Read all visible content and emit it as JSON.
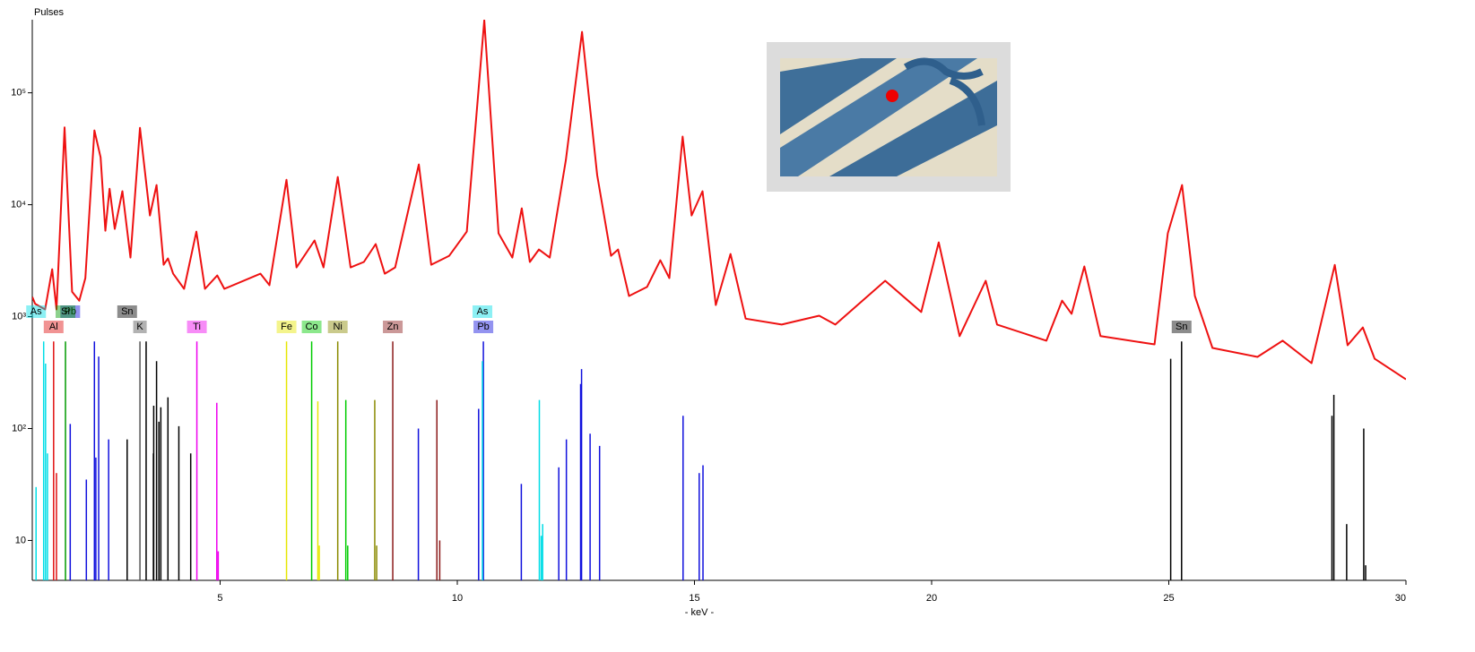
{
  "chart_data": {
    "type": "line",
    "title": "Pulses",
    "x_label": "- keV -",
    "log_y": true,
    "color": "#ee1111",
    "xlim": [
      1.04,
      30
    ],
    "ylim": [
      4.4,
      450000
    ],
    "xticks": [
      5,
      10,
      15,
      20,
      25,
      30
    ],
    "yticks": [
      10,
      {
        "value": 100,
        "label": "10²"
      },
      {
        "value": 1000,
        "label": "10³"
      },
      {
        "value": 10000,
        "label": "10⁴"
      },
      {
        "value": 100000,
        "label": "10⁵"
      }
    ],
    "x": [
      1.04,
      1.1,
      1.31,
      1.46,
      1.55,
      1.72,
      1.88,
      2.03,
      2.16,
      2.35,
      2.48,
      2.58,
      2.67,
      2.78,
      2.94,
      3.11,
      3.31,
      3.52,
      3.66,
      3.81,
      3.9,
      4.01,
      4.24,
      4.5,
      4.68,
      4.94,
      5.09,
      5.85,
      6.04,
      6.4,
      6.61,
      6.99,
      7.18,
      7.48,
      7.75,
      8.03,
      8.28,
      8.47,
      8.69,
      9.19,
      9.45,
      9.83,
      10.2,
      10.57,
      10.87,
      11.16,
      11.36,
      11.53,
      11.72,
      11.95,
      12.29,
      12.63,
      12.95,
      13.24,
      13.39,
      13.62,
      14.0,
      14.28,
      14.47,
      14.75,
      14.94,
      15.17,
      15.45,
      15.76,
      16.08,
      16.84,
      17.63,
      17.97,
      19.02,
      19.78,
      20.15,
      20.59,
      21.14,
      21.38,
      22.42,
      22.75,
      22.95,
      23.22,
      23.56,
      24.7,
      24.98,
      25.28,
      25.55,
      25.92,
      26.87,
      27.4,
      28.01,
      28.5,
      28.77,
      29.09,
      29.34,
      30.0
    ],
    "values": [
      1500,
      1300,
      1160,
      2650,
      1160,
      49000,
      1670,
      1390,
      2210,
      46100,
      26500,
      5860,
      13900,
      6080,
      13200,
      3370,
      48700,
      8020,
      15000,
      2910,
      3310,
      2420,
      1770,
      5750,
      1770,
      2330,
      1770,
      2420,
      1910,
      16700,
      2750,
      4790,
      2750,
      17700,
      2750,
      3080,
      4450,
      2420,
      2750,
      22900,
      2910,
      3500,
      5750,
      445000,
      5550,
      3370,
      9290,
      3080,
      3980,
      3370,
      25100,
      350000,
      18400,
      3500,
      3980,
      1530,
      1840,
      3190,
      2210,
      40600,
      8020,
      13200,
      1270,
      3630,
      960,
      850,
      1020,
      850,
      2090,
      1100,
      4610,
      670,
      2090,
      850,
      610,
      1390,
      1060,
      2810,
      670,
      565,
      5550,
      15000,
      1530,
      525,
      437,
      610,
      384,
      2900,
      555,
      800,
      420,
      275
    ],
    "element_lines": [
      {
        "name": "Al",
        "color": "#e01010",
        "x": [
          1.49,
          1.55
        ],
        "values": [
          600,
          40
        ]
      },
      {
        "name": "As",
        "color": "#00dde6",
        "x": [
          1.12,
          1.28,
          1.32,
          1.36
        ],
        "values": [
          30,
          600,
          380,
          60
        ]
      },
      {
        "name": "Pb",
        "color": "#1010dd",
        "x": [
          1.84,
          2.18,
          2.35,
          2.38,
          2.44,
          2.65
        ],
        "values": [
          110,
          35,
          600,
          55,
          440,
          80
        ]
      },
      {
        "name": "Si",
        "color": "#009900",
        "x": [
          1.74
        ],
        "values": [
          600
        ]
      },
      {
        "name": "K",
        "color": "#555555",
        "x": [
          3.31,
          3.59
        ],
        "values": [
          600,
          60
        ]
      },
      {
        "name": "Sn",
        "color": "#000000",
        "x": [
          3.04,
          3.44,
          3.6,
          3.66,
          3.71,
          3.75,
          3.9,
          4.13,
          4.38
        ],
        "values": [
          80,
          600,
          160,
          400,
          115,
          155,
          190,
          105,
          60
        ]
      },
      {
        "name": "Ti",
        "color": "#ee00ee",
        "x": [
          4.51,
          4.93,
          4.96
        ],
        "values": [
          600,
          170,
          8
        ]
      },
      {
        "name": "Fe",
        "color": "#e6e600",
        "x": [
          6.4,
          7.06,
          7.09
        ],
        "values": [
          600,
          175,
          9
        ]
      },
      {
        "name": "Co",
        "color": "#00cc00",
        "x": [
          6.93,
          7.65,
          7.69
        ],
        "values": [
          600,
          180,
          9
        ]
      },
      {
        "name": "Ni",
        "color": "#8a8a00",
        "x": [
          7.48,
          8.26,
          8.3
        ],
        "values": [
          600,
          180,
          9
        ]
      },
      {
        "name": "Zn",
        "color": "#8b1a1a",
        "x": [
          8.64,
          9.57,
          9.63
        ],
        "values": [
          600,
          180,
          10
        ]
      },
      {
        "name": "Pb",
        "color": "#1010dd",
        "x": [
          10.55,
          9.18,
          10.45,
          11.35,
          12.14,
          12.3,
          12.6,
          12.62,
          12.8,
          13.0,
          14.76,
          15.1,
          15.18
        ],
        "values": [
          600,
          100,
          150,
          32,
          45,
          80,
          250,
          340,
          90,
          70,
          130,
          40,
          47
        ]
      },
      {
        "name": "As",
        "color": "#00dde6",
        "x": [
          10.53,
          11.73,
          11.77,
          11.8
        ],
        "values": [
          400,
          180,
          11,
          14
        ]
      },
      {
        "name": "Sn",
        "color": "#000000",
        "x": [
          25.27,
          25.04,
          28.44,
          28.48,
          28.75,
          29.11,
          29.15
        ],
        "values": [
          600,
          420,
          130,
          200,
          14,
          100,
          6
        ]
      }
    ]
  }
}
